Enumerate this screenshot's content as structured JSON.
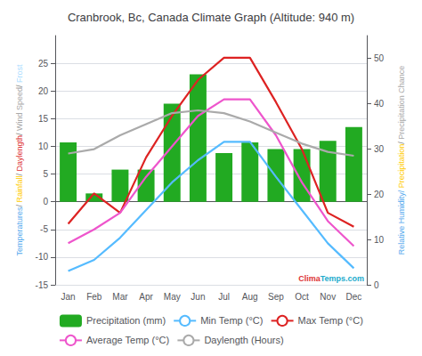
{
  "chart_data": {
    "type": "bar",
    "title": "Cranbrook, Bc, Canada Climate Graph (Altitude: 940 m)",
    "categories": [
      "Jan",
      "Feb",
      "Mar",
      "Apr",
      "May",
      "Jun",
      "Jul",
      "Aug",
      "Sep",
      "Oct",
      "Nov",
      "Dec"
    ],
    "series": [
      {
        "name": "Precipitation (mm)",
        "type": "bar",
        "color": "#22aa22",
        "values": [
          10.7,
          1.5,
          5.8,
          5.8,
          17.7,
          23.0,
          8.8,
          10.7,
          9.5,
          9.5,
          11.0,
          13.5
        ]
      },
      {
        "name": "Min Temp (°C)",
        "type": "line",
        "color": "#55bbff",
        "values": [
          -12.5,
          -10.5,
          -6.5,
          -1.5,
          3.5,
          7.5,
          10.8,
          10.8,
          4.5,
          -1.5,
          -7.5,
          -12.0
        ]
      },
      {
        "name": "Max Temp (°C)",
        "type": "line",
        "color": "#dd2222",
        "values": [
          -4.0,
          1.5,
          -2.0,
          8.0,
          15.5,
          22.0,
          26.0,
          26.0,
          18.0,
          9.5,
          -2.0,
          -4.5
        ]
      },
      {
        "name": "Average Temp (°C)",
        "type": "line",
        "color": "#ee55cc",
        "values": [
          -7.5,
          -5.0,
          -2.0,
          4.5,
          10.0,
          15.5,
          18.5,
          18.5,
          12.0,
          3.5,
          -3.5,
          -8.0
        ]
      },
      {
        "name": "Daylength (Hours)",
        "type": "line",
        "color": "#aaaaaa",
        "values": [
          8.7,
          9.5,
          12.0,
          14.0,
          16.0,
          16.5,
          16.0,
          14.5,
          12.5,
          10.5,
          9.0,
          8.3
        ]
      }
    ],
    "ylim": [
      -15,
      30
    ],
    "yticks": [
      -15,
      -10,
      -5,
      0,
      5,
      10,
      15,
      20,
      25
    ],
    "y2lim": [
      0,
      55
    ],
    "y2ticks": [
      0,
      10,
      20,
      30,
      40,
      50
    ],
    "grid": true,
    "legend": "bottom",
    "ylabel": [
      {
        "text": "Temperatures",
        "color": "#55aaee"
      },
      {
        "text": "/",
        "color": "#888888"
      },
      {
        "text": " ",
        "color": "#888888"
      },
      {
        "text": "Rainfall",
        "color": "#ffcc00"
      },
      {
        "text": "/ ",
        "color": "#888888"
      },
      {
        "text": "Daylength",
        "color": "#dd3333"
      },
      {
        "text": "/ ",
        "color": "#888888"
      },
      {
        "text": "Wind Speed",
        "color": "#aaaaaa"
      },
      {
        "text": "/ ",
        "color": "#888888"
      },
      {
        "text": "Frost",
        "color": "#aaddff"
      }
    ],
    "y2label": [
      {
        "text": "Relative Humidity/ ",
        "color": "#55aaee"
      },
      {
        "text": "Precipitation",
        "color": "#ffcc00"
      },
      {
        "text": "/ ",
        "color": "#888888"
      },
      {
        "text": "Precipitation Chance",
        "color": "#aaaaaa"
      }
    ],
    "annotations": [
      {
        "text": "Clima",
        "color": "#dd3333"
      },
      {
        "text": "Temps",
        "color": "#22aacc"
      },
      {
        "text": ".com",
        "color": "#22aacc"
      }
    ]
  }
}
